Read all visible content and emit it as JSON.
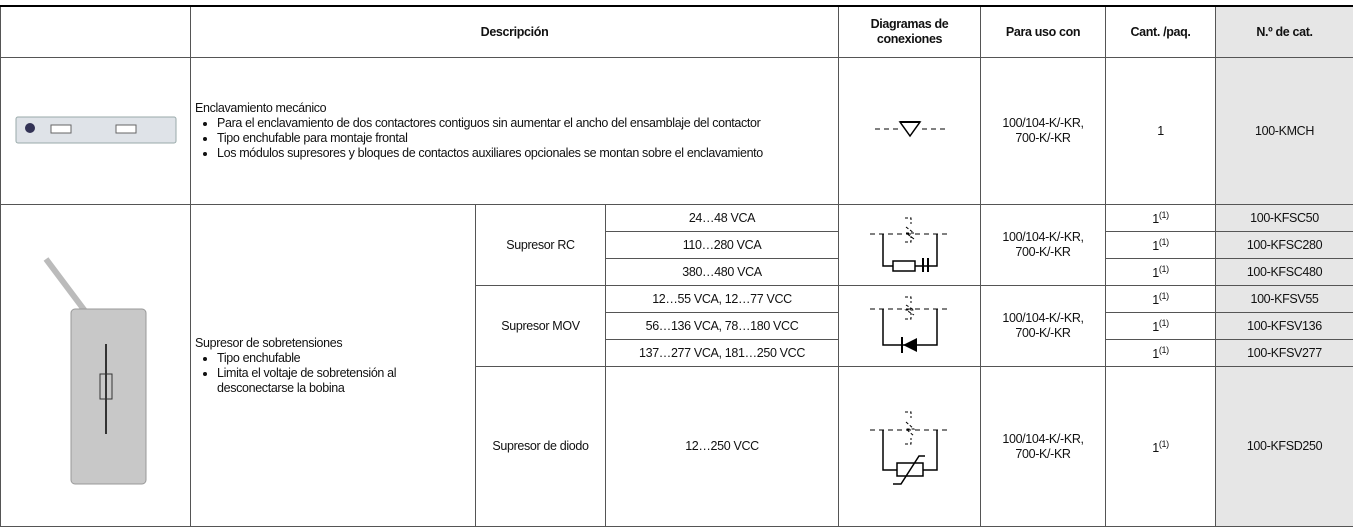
{
  "header": {
    "description": "Descripción",
    "diagrams": "Diagramas de conexiones",
    "use_with": "Para uso con",
    "qty": "Cant. /paq.",
    "cat_no": "N.º de cat."
  },
  "interlock": {
    "title": "Enclavamiento mecánico",
    "bullets": [
      "Para el enclavamiento de dos contactores contiguos sin aumentar el ancho del ensamblaje del contactor",
      "Tipo enchufable para montaje frontal",
      "Los módulos supresores y bloques de contactos auxiliares opcionales se montan sobre el enclavamiento"
    ],
    "use_with": [
      "100/104-K/-KR,",
      "700-K/-KR"
    ],
    "qty": "1",
    "cat_no": "100-KMCH"
  },
  "suppressor": {
    "title": "Supresor de sobretensiones",
    "bullets": [
      "Tipo enchufable",
      "Limita el voltaje de sobretensión al desconectarse la bobina"
    ],
    "groups": [
      {
        "name": "Supresor RC",
        "use_with": [
          "100/104-K/-KR,",
          "700-K/-KR"
        ],
        "items": [
          {
            "voltage": "24…48 VCA",
            "qty": "1",
            "note": "(1)",
            "cat_no": "100-KFSC50"
          },
          {
            "voltage": "110…280 VCA",
            "qty": "1",
            "note": "(1)",
            "cat_no": "100-KFSC280"
          },
          {
            "voltage": "380…480 VCA",
            "qty": "1",
            "note": "(1)",
            "cat_no": "100-KFSC480"
          }
        ]
      },
      {
        "name": "Supresor MOV",
        "use_with": [
          "100/104-K/-KR,",
          "700-K/-KR"
        ],
        "items": [
          {
            "voltage": "12…55 VCA, 12…77 VCC",
            "qty": "1",
            "note": "(1)",
            "cat_no": "100-KFSV55"
          },
          {
            "voltage": "56…136 VCA, 78…180 VCC",
            "qty": "1",
            "note": "(1)",
            "cat_no": "100-KFSV136"
          },
          {
            "voltage": "137…277 VCA, 181…250 VCC",
            "qty": "1",
            "note": "(1)",
            "cat_no": "100-KFSV277"
          }
        ]
      },
      {
        "name": "Supresor de diodo",
        "use_with": [
          "100/104-K/-KR,",
          "700-K/-KR"
        ],
        "items": [
          {
            "voltage": "12…250 VCC",
            "qty": "1",
            "note": "(1)",
            "cat_no": "100-KFSD250"
          }
        ]
      }
    ]
  }
}
